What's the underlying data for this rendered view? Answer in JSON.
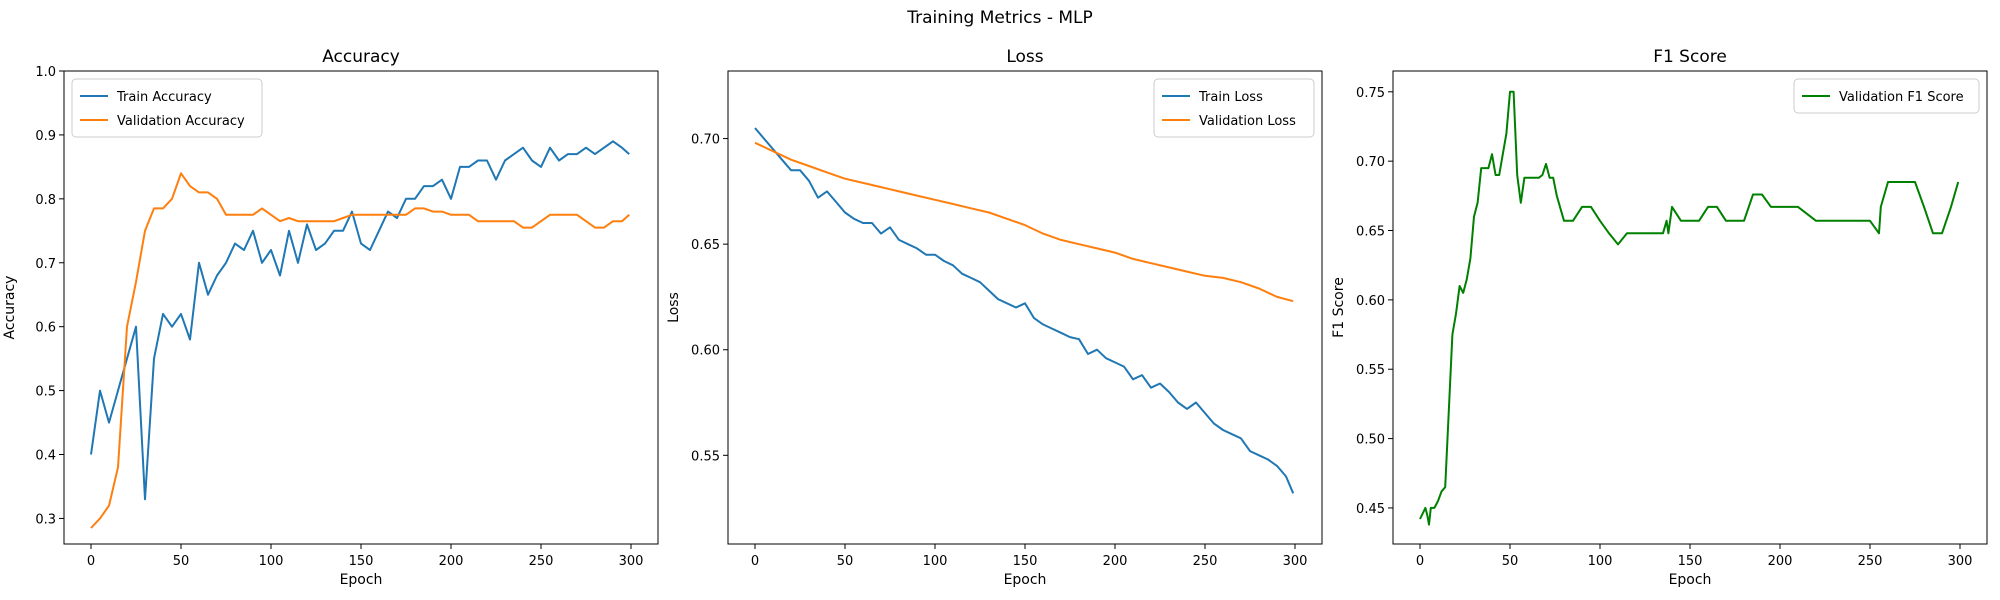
{
  "figure": {
    "title": "Training Metrics - MLP"
  },
  "colors": {
    "train": "#1f77b4",
    "validation": "#ff7f0e",
    "f1": "#008000"
  },
  "chart_data": [
    {
      "type": "line",
      "title": "Accuracy",
      "xlabel": "Epoch",
      "ylabel": "Accuracy",
      "xlim": [
        -15,
        315
      ],
      "ylim": [
        0.26,
        1.0
      ],
      "xticks": [
        0,
        50,
        100,
        150,
        200,
        250,
        300
      ],
      "yticks": [
        0.3,
        0.4,
        0.5,
        0.6,
        0.7,
        0.8,
        0.9,
        1.0
      ],
      "ytick_decimals": 1,
      "grid": false,
      "legend": "upper-left",
      "series": [
        {
          "name": "Train Accuracy",
          "color_key": "train",
          "x": [
            0,
            5,
            10,
            15,
            20,
            25,
            30,
            35,
            40,
            45,
            50,
            55,
            60,
            65,
            70,
            75,
            80,
            85,
            90,
            95,
            100,
            105,
            110,
            115,
            120,
            125,
            130,
            135,
            140,
            145,
            150,
            155,
            160,
            165,
            170,
            175,
            180,
            185,
            190,
            195,
            200,
            205,
            210,
            215,
            220,
            225,
            230,
            235,
            240,
            245,
            250,
            255,
            260,
            265,
            270,
            275,
            280,
            285,
            290,
            295,
            299
          ],
          "y": [
            0.4,
            0.5,
            0.45,
            0.5,
            0.55,
            0.6,
            0.33,
            0.55,
            0.62,
            0.6,
            0.62,
            0.58,
            0.7,
            0.65,
            0.68,
            0.7,
            0.73,
            0.72,
            0.75,
            0.7,
            0.72,
            0.68,
            0.75,
            0.7,
            0.76,
            0.72,
            0.73,
            0.75,
            0.75,
            0.78,
            0.73,
            0.72,
            0.75,
            0.78,
            0.77,
            0.8,
            0.8,
            0.82,
            0.82,
            0.83,
            0.8,
            0.85,
            0.85,
            0.86,
            0.86,
            0.83,
            0.86,
            0.87,
            0.88,
            0.86,
            0.85,
            0.88,
            0.86,
            0.87,
            0.87,
            0.88,
            0.87,
            0.88,
            0.89,
            0.88,
            0.87
          ]
        },
        {
          "name": "Validation Accuracy",
          "color_key": "validation",
          "x": [
            0,
            5,
            10,
            15,
            20,
            25,
            30,
            35,
            40,
            45,
            50,
            55,
            60,
            65,
            70,
            75,
            80,
            85,
            90,
            95,
            100,
            105,
            110,
            115,
            120,
            125,
            130,
            135,
            140,
            145,
            150,
            155,
            160,
            165,
            170,
            175,
            180,
            185,
            190,
            195,
            200,
            205,
            210,
            215,
            220,
            225,
            230,
            235,
            240,
            245,
            250,
            255,
            260,
            265,
            270,
            275,
            280,
            285,
            290,
            295,
            299
          ],
          "y": [
            0.285,
            0.3,
            0.32,
            0.38,
            0.6,
            0.67,
            0.75,
            0.785,
            0.785,
            0.8,
            0.84,
            0.82,
            0.81,
            0.81,
            0.8,
            0.775,
            0.775,
            0.775,
            0.775,
            0.785,
            0.775,
            0.765,
            0.77,
            0.765,
            0.765,
            0.765,
            0.765,
            0.765,
            0.77,
            0.775,
            0.775,
            0.775,
            0.775,
            0.775,
            0.775,
            0.775,
            0.785,
            0.785,
            0.78,
            0.78,
            0.775,
            0.775,
            0.775,
            0.765,
            0.765,
            0.765,
            0.765,
            0.765,
            0.755,
            0.755,
            0.765,
            0.775,
            0.775,
            0.775,
            0.775,
            0.765,
            0.755,
            0.755,
            0.765,
            0.765,
            0.775
          ]
        }
      ]
    },
    {
      "type": "line",
      "title": "Loss",
      "xlabel": "Epoch",
      "ylabel": "Loss",
      "xlim": [
        -15,
        315
      ],
      "ylim": [
        0.508,
        0.732
      ],
      "xticks": [
        0,
        50,
        100,
        150,
        200,
        250,
        300
      ],
      "yticks": [
        0.55,
        0.6,
        0.65,
        0.7
      ],
      "ytick_decimals": 2,
      "grid": false,
      "legend": "upper-right",
      "series": [
        {
          "name": "Train Loss",
          "color_key": "train",
          "x": [
            0,
            5,
            10,
            15,
            20,
            25,
            30,
            35,
            40,
            45,
            50,
            55,
            60,
            65,
            70,
            75,
            80,
            85,
            90,
            95,
            100,
            105,
            110,
            115,
            120,
            125,
            130,
            135,
            140,
            145,
            150,
            155,
            160,
            165,
            170,
            175,
            180,
            185,
            190,
            195,
            200,
            205,
            210,
            215,
            220,
            225,
            230,
            235,
            240,
            245,
            250,
            255,
            260,
            265,
            270,
            275,
            280,
            285,
            290,
            295,
            299
          ],
          "y": [
            0.705,
            0.7,
            0.695,
            0.69,
            0.685,
            0.685,
            0.68,
            0.672,
            0.675,
            0.67,
            0.665,
            0.662,
            0.66,
            0.66,
            0.655,
            0.658,
            0.652,
            0.65,
            0.648,
            0.645,
            0.645,
            0.642,
            0.64,
            0.636,
            0.634,
            0.632,
            0.628,
            0.624,
            0.622,
            0.62,
            0.622,
            0.615,
            0.612,
            0.61,
            0.608,
            0.606,
            0.605,
            0.598,
            0.6,
            0.596,
            0.594,
            0.592,
            0.586,
            0.588,
            0.582,
            0.584,
            0.58,
            0.575,
            0.572,
            0.575,
            0.57,
            0.565,
            0.562,
            0.56,
            0.558,
            0.552,
            0.55,
            0.548,
            0.545,
            0.54,
            0.532
          ]
        },
        {
          "name": "Validation Loss",
          "color_key": "validation",
          "x": [
            0,
            10,
            20,
            30,
            40,
            50,
            60,
            70,
            80,
            90,
            100,
            110,
            120,
            130,
            140,
            150,
            160,
            170,
            180,
            190,
            200,
            210,
            220,
            230,
            240,
            250,
            260,
            270,
            280,
            290,
            299
          ],
          "y": [
            0.698,
            0.694,
            0.69,
            0.687,
            0.684,
            0.681,
            0.679,
            0.677,
            0.675,
            0.673,
            0.671,
            0.669,
            0.667,
            0.665,
            0.662,
            0.659,
            0.655,
            0.652,
            0.65,
            0.648,
            0.646,
            0.643,
            0.641,
            0.639,
            0.637,
            0.635,
            0.634,
            0.632,
            0.629,
            0.625,
            0.623
          ]
        }
      ]
    },
    {
      "type": "line",
      "title": "F1 Score",
      "xlabel": "Epoch",
      "ylabel": "F1 Score",
      "xlim": [
        -15,
        315
      ],
      "ylim": [
        0.424,
        0.765
      ],
      "xticks": [
        0,
        50,
        100,
        150,
        200,
        250,
        300
      ],
      "yticks": [
        0.45,
        0.5,
        0.55,
        0.6,
        0.65,
        0.7,
        0.75
      ],
      "ytick_decimals": 2,
      "grid": false,
      "legend": "upper-right",
      "series": [
        {
          "name": "Validation F1 Score",
          "color_key": "f1",
          "x": [
            0,
            3,
            4,
            5,
            6,
            8,
            10,
            12,
            14,
            16,
            18,
            20,
            22,
            24,
            26,
            28,
            30,
            32,
            34,
            36,
            38,
            40,
            42,
            44,
            46,
            48,
            50,
            52,
            54,
            56,
            58,
            60,
            62,
            64,
            66,
            68,
            70,
            72,
            74,
            76,
            80,
            85,
            90,
            95,
            100,
            105,
            110,
            115,
            120,
            125,
            130,
            135,
            137,
            138,
            140,
            145,
            150,
            155,
            160,
            165,
            170,
            175,
            180,
            185,
            190,
            195,
            200,
            210,
            220,
            230,
            240,
            250,
            255,
            256,
            260,
            265,
            270,
            275,
            280,
            285,
            290,
            295,
            299
          ],
          "y": [
            0.442,
            0.45,
            0.445,
            0.438,
            0.45,
            0.45,
            0.455,
            0.462,
            0.465,
            0.52,
            0.575,
            0.59,
            0.61,
            0.605,
            0.615,
            0.63,
            0.66,
            0.67,
            0.695,
            0.695,
            0.695,
            0.705,
            0.69,
            0.69,
            0.705,
            0.72,
            0.75,
            0.75,
            0.69,
            0.67,
            0.688,
            0.688,
            0.688,
            0.688,
            0.688,
            0.69,
            0.698,
            0.688,
            0.688,
            0.675,
            0.657,
            0.657,
            0.667,
            0.667,
            0.657,
            0.648,
            0.64,
            0.648,
            0.648,
            0.648,
            0.648,
            0.648,
            0.657,
            0.648,
            0.667,
            0.657,
            0.657,
            0.657,
            0.667,
            0.667,
            0.657,
            0.657,
            0.657,
            0.676,
            0.676,
            0.667,
            0.667,
            0.667,
            0.657,
            0.657,
            0.657,
            0.657,
            0.648,
            0.667,
            0.685,
            0.685,
            0.685,
            0.685,
            0.667,
            0.648,
            0.648,
            0.667,
            0.685
          ]
        }
      ]
    }
  ]
}
